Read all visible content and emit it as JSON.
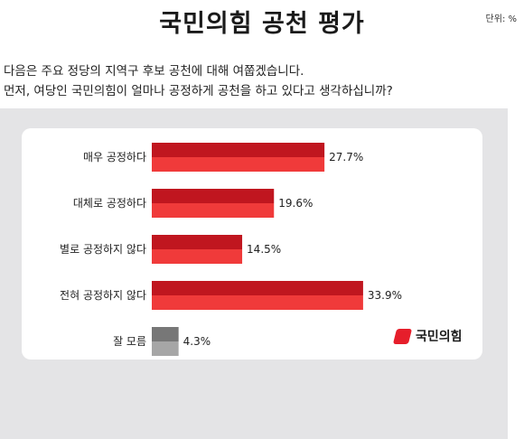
{
  "title": "국민의힘 공천 평가",
  "unit": "단위: %",
  "question": [
    "다음은 주요 정당의 지역구 후보 공천에 대해 여쭙겠습니다.",
    "먼저, 여당인 국민의힘이 얼마나 공정하게 공천을 하고 있다고 생각하십니까?"
  ],
  "logo_text": "국민의힘",
  "colors": {
    "positive_top": "#c0161f",
    "positive_bottom": "#f03a3a",
    "neutral_top": "#777777",
    "neutral_bottom": "#a6a6a6"
  },
  "chart_data": {
    "type": "bar",
    "orientation": "horizontal",
    "categories": [
      "매우 공정하다",
      "대체로 공정하다",
      "별로 공정하지 않다",
      "전혀 공정하지 않다",
      "잘 모름"
    ],
    "values": [
      27.7,
      19.6,
      14.5,
      33.9,
      4.3
    ],
    "value_labels": [
      "27.7%",
      "19.6%",
      "14.5%",
      "33.9%",
      "4.3%"
    ],
    "bar_colors": [
      "red",
      "red",
      "red",
      "red",
      "gray"
    ],
    "grid": false
  }
}
